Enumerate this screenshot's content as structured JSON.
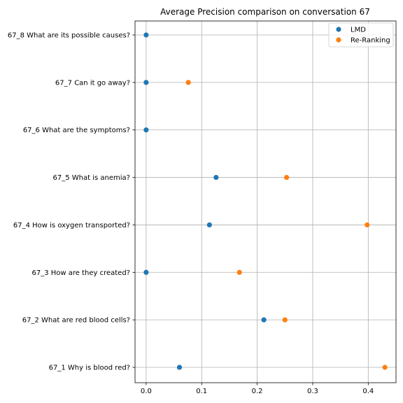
{
  "chart_data": {
    "type": "scatter",
    "title": "Average Precision comparison on conversation 67",
    "xlabel": "",
    "ylabel": "",
    "xlim": [
      -0.02,
      0.45
    ],
    "x_ticks": [
      0.0,
      0.1,
      0.2,
      0.3,
      0.4
    ],
    "x_tick_labels": [
      "0.0",
      "0.1",
      "0.2",
      "0.3",
      "0.4"
    ],
    "categories": [
      "67_1 Why is blood red?",
      "67_2 What are red blood cells?",
      "67_3 How are they created?",
      "67_4 How is oxygen transported?",
      "67_5 What is anemia?",
      "67_6 What are the symptoms?",
      "67_7 Can it go away?",
      "67_8 What are its possible causes?"
    ],
    "series": [
      {
        "name": "LMD",
        "color": "#1f77b4",
        "values": [
          0.06,
          0.212,
          0.0,
          0.114,
          0.126,
          0.0,
          0.0,
          0.0
        ]
      },
      {
        "name": "Re-Ranking",
        "color": "#ff7f0e",
        "values": [
          0.43,
          0.25,
          0.168,
          0.398,
          0.253,
          null,
          0.076,
          null
        ]
      }
    ],
    "grid": true,
    "legend_position": "top-right"
  }
}
